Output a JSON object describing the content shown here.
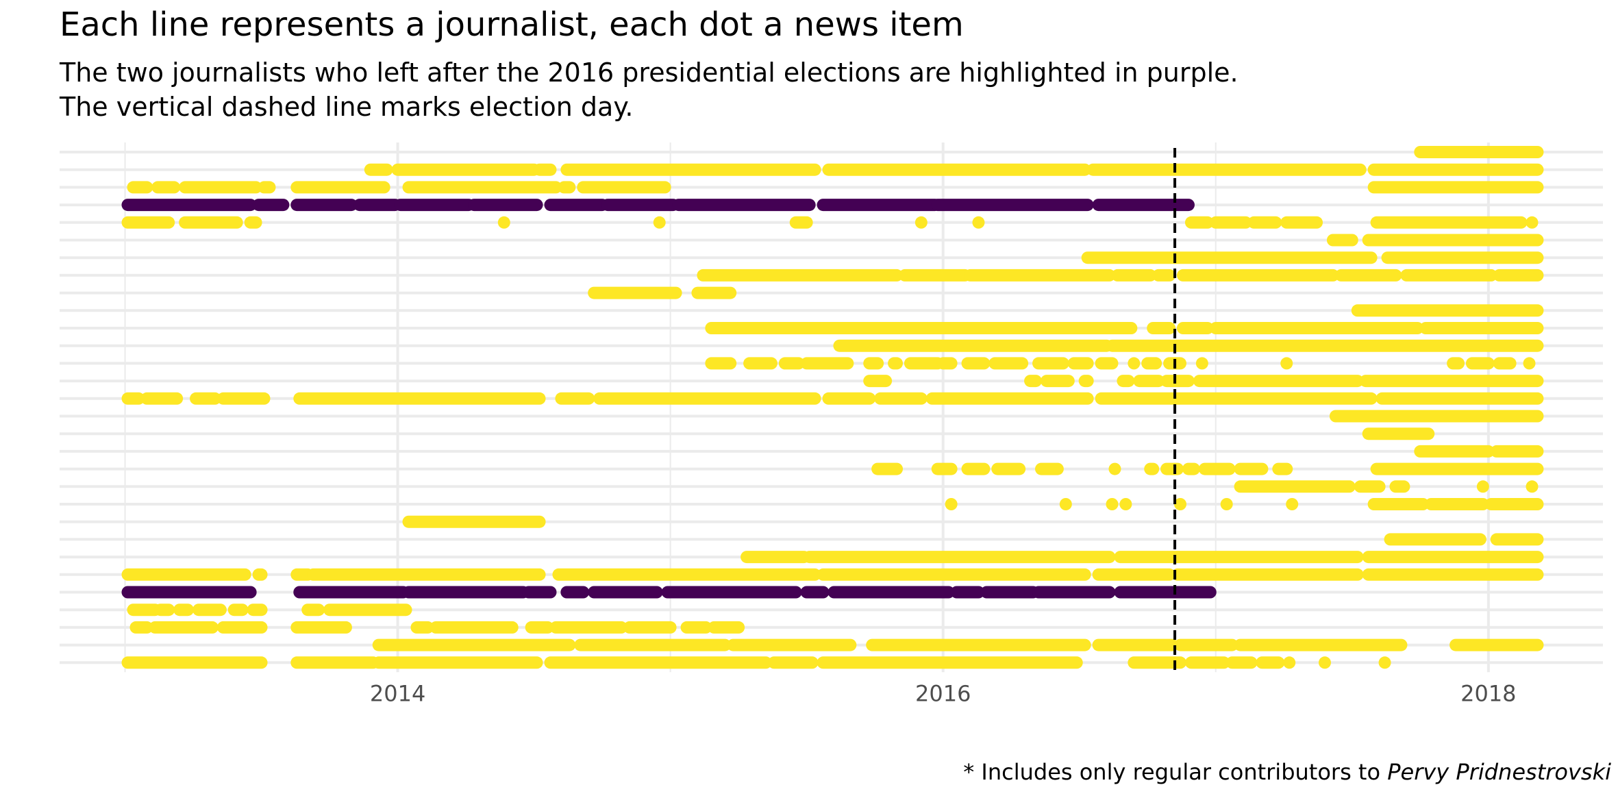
{
  "chart_data": {
    "type": "scatter",
    "title": "Each line represents a journalist, each dot a news item",
    "subtitle_lines": [
      "The two journalists who left after the 2016 presidential elections are highlighted in purple.",
      "The vertical dashed line marks election day."
    ],
    "caption_prefix": "* Includes only regular contributors to ",
    "caption_emphasis": "Pervy Pridnestrovski",
    "xlabel": "",
    "ylabel": "",
    "x_ticks": [
      "2014",
      "2016",
      "2018"
    ],
    "x_range": [
      2012.76,
      2018.42
    ],
    "election_day": 2016.85,
    "grid": true,
    "colors": {
      "highlight": "#440154",
      "other": "#FDE725",
      "grid": "#EBEBEB",
      "election_line": "#000000"
    },
    "series": [
      {
        "highlight": false,
        "segments": [
          [
            2017.75,
            2018.18
          ]
        ]
      },
      {
        "highlight": false,
        "segments": [
          [
            2013.9,
            2013.96
          ],
          [
            2014.0,
            2014.5
          ],
          [
            2014.52,
            2014.56
          ],
          [
            2014.62,
            2015.53
          ],
          [
            2015.58,
            2016.52
          ],
          [
            2016.55,
            2017.53
          ],
          [
            2017.58,
            2018.18
          ]
        ]
      },
      {
        "highlight": false,
        "segments": [
          [
            2013.03,
            2013.08
          ],
          [
            2013.12,
            2013.18
          ],
          [
            2013.22,
            2013.48
          ],
          [
            2013.51,
            2013.53
          ],
          [
            2013.63,
            2013.95
          ],
          [
            2014.04,
            2014.58
          ],
          [
            2014.61,
            2014.63
          ],
          [
            2014.68,
            2014.98
          ],
          [
            2017.58,
            2018.18
          ]
        ]
      },
      {
        "highlight": true,
        "segments": [
          [
            2013.01,
            2013.46
          ],
          [
            2013.49,
            2013.58
          ],
          [
            2013.63,
            2013.83
          ],
          [
            2013.86,
            2013.99
          ],
          [
            2014.01,
            2014.26
          ],
          [
            2014.28,
            2014.51
          ],
          [
            2014.56,
            2014.75
          ],
          [
            2014.77,
            2015.01
          ],
          [
            2015.03,
            2015.51
          ],
          [
            2015.56,
            2015.97
          ],
          [
            2015.98,
            2016.53
          ],
          [
            2016.57,
            2016.9
          ]
        ]
      },
      {
        "highlight": false,
        "segments": [
          [
            2013.01,
            2013.16
          ],
          [
            2013.22,
            2013.41
          ],
          [
            2013.46,
            2013.48
          ],
          [
            2014.39,
            2014.39
          ],
          [
            2014.96,
            2014.96
          ],
          [
            2015.46,
            2015.5
          ],
          [
            2015.92,
            2015.92
          ],
          [
            2016.13,
            2016.13
          ],
          [
            2016.91,
            2016.97
          ],
          [
            2017.0,
            2017.11
          ],
          [
            2017.14,
            2017.22
          ],
          [
            2017.26,
            2017.37
          ],
          [
            2017.59,
            2018.12
          ],
          [
            2018.16,
            2018.16
          ]
        ]
      },
      {
        "highlight": false,
        "segments": [
          [
            2017.43,
            2017.5
          ],
          [
            2017.56,
            2018.18
          ]
        ]
      },
      {
        "highlight": false,
        "segments": [
          [
            2016.53,
            2017.57
          ],
          [
            2017.63,
            2018.18
          ]
        ]
      },
      {
        "highlight": false,
        "segments": [
          [
            2015.12,
            2015.83
          ],
          [
            2015.86,
            2016.08
          ],
          [
            2016.1,
            2016.61
          ],
          [
            2016.64,
            2016.76
          ],
          [
            2016.79,
            2016.83
          ],
          [
            2016.88,
            2017.43
          ],
          [
            2017.46,
            2017.66
          ],
          [
            2017.7,
            2018.01
          ],
          [
            2018.04,
            2018.18
          ]
        ]
      },
      {
        "highlight": false,
        "segments": [
          [
            2014.72,
            2015.02
          ],
          [
            2015.1,
            2015.22
          ]
        ]
      },
      {
        "highlight": false,
        "segments": [
          [
            2017.52,
            2018.18
          ]
        ]
      },
      {
        "highlight": false,
        "segments": [
          [
            2015.15,
            2016.69
          ],
          [
            2016.77,
            2016.83
          ],
          [
            2016.88,
            2016.97
          ],
          [
            2017.0,
            2017.74
          ],
          [
            2017.77,
            2018.18
          ]
        ]
      },
      {
        "highlight": false,
        "segments": [
          [
            2015.62,
            2016.6
          ],
          [
            2016.62,
            2018.18
          ]
        ]
      },
      {
        "highlight": false,
        "segments": [
          [
            2015.15,
            2015.22
          ],
          [
            2015.29,
            2015.37
          ],
          [
            2015.42,
            2015.47
          ],
          [
            2015.5,
            2015.65
          ],
          [
            2015.73,
            2015.76
          ],
          [
            2015.82,
            2015.83
          ],
          [
            2015.88,
            2015.98
          ],
          [
            2016.0,
            2016.03
          ],
          [
            2016.09,
            2016.15
          ],
          [
            2016.19,
            2016.29
          ],
          [
            2016.35,
            2016.44
          ],
          [
            2016.48,
            2016.53
          ],
          [
            2016.58,
            2016.62
          ],
          [
            2016.7,
            2016.7
          ],
          [
            2016.75,
            2016.78
          ],
          [
            2016.83,
            2016.87
          ],
          [
            2016.95,
            2016.95
          ],
          [
            2017.26,
            2017.26
          ],
          [
            2017.87,
            2017.89
          ],
          [
            2017.94,
            2018.0
          ],
          [
            2018.04,
            2018.08
          ],
          [
            2018.15,
            2018.15
          ]
        ]
      },
      {
        "highlight": false,
        "segments": [
          [
            2015.73,
            2015.79
          ],
          [
            2016.32,
            2016.34
          ],
          [
            2016.38,
            2016.46
          ],
          [
            2016.52,
            2016.53
          ],
          [
            2016.66,
            2016.68
          ],
          [
            2016.72,
            2016.79
          ],
          [
            2016.82,
            2016.9
          ],
          [
            2016.94,
            2017.52
          ],
          [
            2017.55,
            2018.18
          ]
        ]
      },
      {
        "highlight": false,
        "segments": [
          [
            2013.01,
            2013.05
          ],
          [
            2013.08,
            2013.19
          ],
          [
            2013.26,
            2013.33
          ],
          [
            2013.36,
            2013.51
          ],
          [
            2013.64,
            2014.52
          ],
          [
            2014.6,
            2014.7
          ],
          [
            2014.74,
            2015.53
          ],
          [
            2015.58,
            2015.73
          ],
          [
            2015.77,
            2015.92
          ],
          [
            2015.96,
            2016.53
          ],
          [
            2016.58,
            2017.57
          ],
          [
            2017.61,
            2018.18
          ]
        ]
      },
      {
        "highlight": false,
        "segments": [
          [
            2017.44,
            2018.18
          ]
        ]
      },
      {
        "highlight": false,
        "segments": [
          [
            2017.56,
            2017.78
          ]
        ]
      },
      {
        "highlight": false,
        "segments": [
          [
            2017.75,
            2018.0
          ],
          [
            2018.03,
            2018.18
          ]
        ]
      },
      {
        "highlight": false,
        "segments": [
          [
            2015.76,
            2015.83
          ],
          [
            2015.98,
            2016.03
          ],
          [
            2016.09,
            2016.15
          ],
          [
            2016.2,
            2016.28
          ],
          [
            2016.36,
            2016.42
          ],
          [
            2016.63,
            2016.63
          ],
          [
            2016.76,
            2016.77
          ],
          [
            2016.82,
            2016.86
          ],
          [
            2016.9,
            2016.92
          ],
          [
            2016.96,
            2017.05
          ],
          [
            2017.09,
            2017.17
          ],
          [
            2017.23,
            2017.26
          ],
          [
            2017.59,
            2018.18
          ]
        ]
      },
      {
        "highlight": false,
        "segments": [
          [
            2017.09,
            2017.49
          ],
          [
            2017.53,
            2017.6
          ],
          [
            2017.66,
            2017.69
          ],
          [
            2017.98,
            2017.98
          ],
          [
            2018.16,
            2018.16
          ]
        ]
      },
      {
        "highlight": false,
        "segments": [
          [
            2016.03,
            2016.03
          ],
          [
            2016.45,
            2016.45
          ],
          [
            2016.62,
            2016.62
          ],
          [
            2016.67,
            2016.67
          ],
          [
            2016.87,
            2016.87
          ],
          [
            2017.04,
            2017.04
          ],
          [
            2017.28,
            2017.28
          ],
          [
            2017.58,
            2017.76
          ],
          [
            2017.79,
            2017.98
          ],
          [
            2018.01,
            2018.18
          ]
        ]
      },
      {
        "highlight": false,
        "segments": [
          [
            2014.04,
            2014.52
          ]
        ]
      },
      {
        "highlight": false,
        "segments": [
          [
            2017.64,
            2017.97
          ],
          [
            2018.03,
            2018.18
          ]
        ]
      },
      {
        "highlight": false,
        "segments": [
          [
            2015.28,
            2015.49
          ],
          [
            2015.51,
            2016.61
          ],
          [
            2016.65,
            2017.52
          ],
          [
            2017.56,
            2018.18
          ]
        ]
      },
      {
        "highlight": false,
        "segments": [
          [
            2013.01,
            2013.44
          ],
          [
            2013.49,
            2013.5
          ],
          [
            2013.63,
            2013.67
          ],
          [
            2013.69,
            2014.52
          ],
          [
            2014.59,
            2015.53
          ],
          [
            2015.56,
            2016.52
          ],
          [
            2016.57,
            2016.83
          ],
          [
            2016.86,
            2017.52
          ],
          [
            2017.56,
            2018.18
          ]
        ]
      },
      {
        "highlight": true,
        "segments": [
          [
            2013.01,
            2013.46
          ],
          [
            2013.64,
            2014.02
          ],
          [
            2014.04,
            2014.46
          ],
          [
            2014.48,
            2014.56
          ],
          [
            2014.62,
            2014.68
          ],
          [
            2014.72,
            2014.95
          ],
          [
            2014.99,
            2015.46
          ],
          [
            2015.5,
            2015.56
          ],
          [
            2015.6,
            2016.02
          ],
          [
            2016.05,
            2016.13
          ],
          [
            2016.16,
            2016.33
          ],
          [
            2016.35,
            2016.61
          ],
          [
            2016.65,
            2016.98
          ]
        ]
      },
      {
        "highlight": false,
        "segments": [
          [
            2013.03,
            2013.11
          ],
          [
            2013.13,
            2013.16
          ],
          [
            2013.2,
            2013.23
          ],
          [
            2013.27,
            2013.35
          ],
          [
            2013.4,
            2013.43
          ],
          [
            2013.47,
            2013.5
          ],
          [
            2013.67,
            2013.71
          ],
          [
            2013.75,
            2014.03
          ]
        ]
      },
      {
        "highlight": false,
        "segments": [
          [
            2013.04,
            2013.08
          ],
          [
            2013.11,
            2013.32
          ],
          [
            2013.36,
            2013.5
          ],
          [
            2013.63,
            2013.81
          ],
          [
            2014.07,
            2014.11
          ],
          [
            2014.14,
            2014.42
          ],
          [
            2014.49,
            2014.55
          ],
          [
            2014.58,
            2014.82
          ],
          [
            2014.85,
            2015.0
          ],
          [
            2015.06,
            2015.13
          ],
          [
            2015.16,
            2015.25
          ]
        ]
      },
      {
        "highlight": false,
        "segments": [
          [
            2013.93,
            2014.63
          ],
          [
            2014.67,
            2015.2
          ],
          [
            2015.23,
            2015.66
          ],
          [
            2015.74,
            2016.52
          ],
          [
            2016.57,
            2016.84
          ],
          [
            2016.87,
            2017.06
          ],
          [
            2017.09,
            2017.68
          ],
          [
            2017.88,
            2018.18
          ]
        ]
      },
      {
        "highlight": false,
        "segments": [
          [
            2013.01,
            2013.5
          ],
          [
            2013.63,
            2013.91
          ],
          [
            2013.93,
            2014.51
          ],
          [
            2014.56,
            2015.35
          ],
          [
            2015.38,
            2015.52
          ],
          [
            2015.56,
            2016.49
          ],
          [
            2016.7,
            2016.87
          ],
          [
            2016.91,
            2017.03
          ],
          [
            2017.06,
            2017.13
          ],
          [
            2017.17,
            2017.23
          ],
          [
            2017.27,
            2017.27
          ],
          [
            2017.4,
            2017.4
          ],
          [
            2017.62,
            2017.62
          ]
        ]
      }
    ]
  }
}
